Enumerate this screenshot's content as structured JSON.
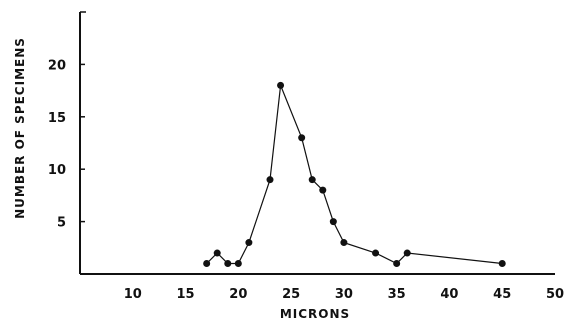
{
  "chart_data": {
    "type": "line",
    "xlabel": "MICRONS",
    "ylabel": "NUMBER OF SPECIMENS",
    "xlim": [
      5,
      50
    ],
    "ylim": [
      0,
      25
    ],
    "x_ticks": [
      10,
      15,
      20,
      25,
      30,
      35,
      40,
      45,
      50
    ],
    "x_tick_labels": [
      "10",
      "15",
      "20",
      "25",
      "30",
      "35",
      "40",
      "45",
      "50"
    ],
    "y_ticks": [
      5,
      10,
      15,
      20
    ],
    "y_tick_labels": [
      "5",
      "10",
      "15",
      "20"
    ],
    "grid": false,
    "series": [
      {
        "points": [
          {
            "x": 17,
            "y": 1
          },
          {
            "x": 18,
            "y": 2
          },
          {
            "x": 19,
            "y": 1
          },
          {
            "x": 20,
            "y": 1
          },
          {
            "x": 21,
            "y": 3
          },
          {
            "x": 23,
            "y": 9
          },
          {
            "x": 24,
            "y": 18
          },
          {
            "x": 26,
            "y": 13
          },
          {
            "x": 27,
            "y": 9
          },
          {
            "x": 28,
            "y": 8
          },
          {
            "x": 29,
            "y": 5
          },
          {
            "x": 30,
            "y": 3
          },
          {
            "x": 33,
            "y": 2
          },
          {
            "x": 35,
            "y": 1
          },
          {
            "x": 36,
            "y": 2
          },
          {
            "x": 45,
            "y": 1
          }
        ]
      }
    ]
  }
}
